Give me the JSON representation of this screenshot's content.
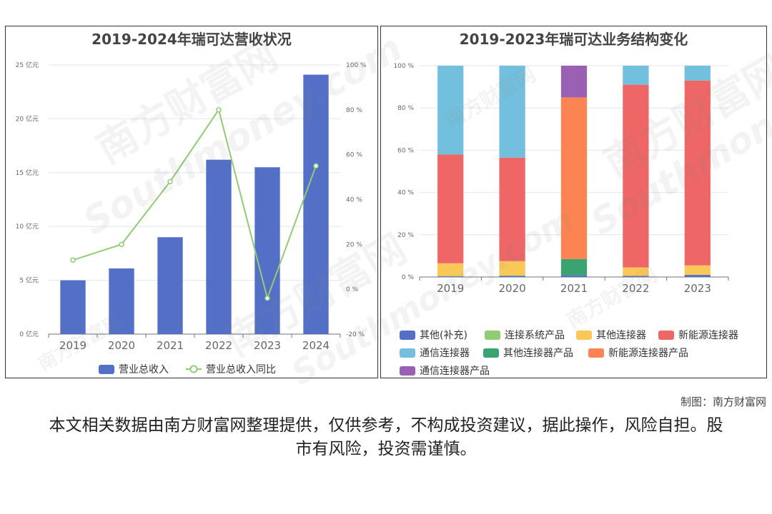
{
  "credit": "制图：南方财富网",
  "disclaimer": "本文相关数据由南方财富网整理提供，仅供参考，不构成投资建议，据此操作，风险自担。股市有风险，投资需谨慎。",
  "watermark": {
    "cn": "南方财富网",
    "en": "Southmoney.com"
  },
  "chart_data": [
    {
      "type": "bar",
      "title": "2019-2024年瑞可达营收状况",
      "categories": [
        "2019",
        "2020",
        "2021",
        "2022",
        "2023",
        "2024"
      ],
      "y_ticks": [
        "0 亿元",
        "5 亿元",
        "10 亿元",
        "15 亿元",
        "20 亿元",
        "25 亿元"
      ],
      "y2_ticks": [
        "-20 %",
        "0 %",
        "20 %",
        "40 %",
        "60 %",
        "80 %",
        "100 %"
      ],
      "ylim": [
        0,
        25
      ],
      "y2lim": [
        -20,
        100
      ],
      "grid": true,
      "legend_position": "bottom",
      "series": [
        {
          "name": "营业总收入",
          "kind": "bar",
          "axis": "left",
          "color": "#5470c6",
          "values": [
            5.0,
            6.1,
            9.0,
            16.2,
            15.5,
            24.1
          ]
        },
        {
          "name": "营业总收入同比",
          "kind": "line",
          "axis": "right",
          "color": "#91cc75",
          "values": [
            13,
            20,
            48,
            80,
            -4,
            55
          ]
        }
      ]
    },
    {
      "type": "bar",
      "stacked": true,
      "title": "2019-2023年瑞可达业务结构变化",
      "categories": [
        "2019",
        "2020",
        "2021",
        "2022",
        "2023"
      ],
      "y_ticks": [
        "0 %",
        "20 %",
        "40 %",
        "60 %",
        "80 %",
        "100 %"
      ],
      "ylim": [
        0,
        100
      ],
      "grid": true,
      "legend_position": "bottom",
      "series": [
        {
          "name": "其他(补充)",
          "color": "#5470c6",
          "values": [
            0.3,
            0.5,
            0.8,
            0.5,
            1.0
          ]
        },
        {
          "name": "连接系统产品",
          "color": "#91cc75",
          "values": [
            0.2,
            0.2,
            0,
            0,
            0
          ]
        },
        {
          "name": "其他连接器",
          "color": "#fac858",
          "values": [
            6.0,
            6.8,
            0,
            4.0,
            4.5
          ]
        },
        {
          "name": "新能源连接器",
          "color": "#ee6666",
          "values": [
            51.5,
            49.0,
            0,
            86.5,
            87.5
          ]
        },
        {
          "name": "通信连接器",
          "color": "#73c0de",
          "values": [
            42.0,
            43.5,
            0,
            9.0,
            7.0
          ]
        },
        {
          "name": "其他连接器产品",
          "color": "#3ba272",
          "values": [
            0,
            0,
            7.7,
            0,
            0
          ]
        },
        {
          "name": "新能源连接器产品",
          "color": "#fc8452",
          "values": [
            0,
            0,
            76.5,
            0,
            0
          ]
        },
        {
          "name": "通信连接器产品",
          "color": "#9a60b4",
          "values": [
            0,
            0,
            15.0,
            0,
            0
          ]
        }
      ]
    }
  ]
}
